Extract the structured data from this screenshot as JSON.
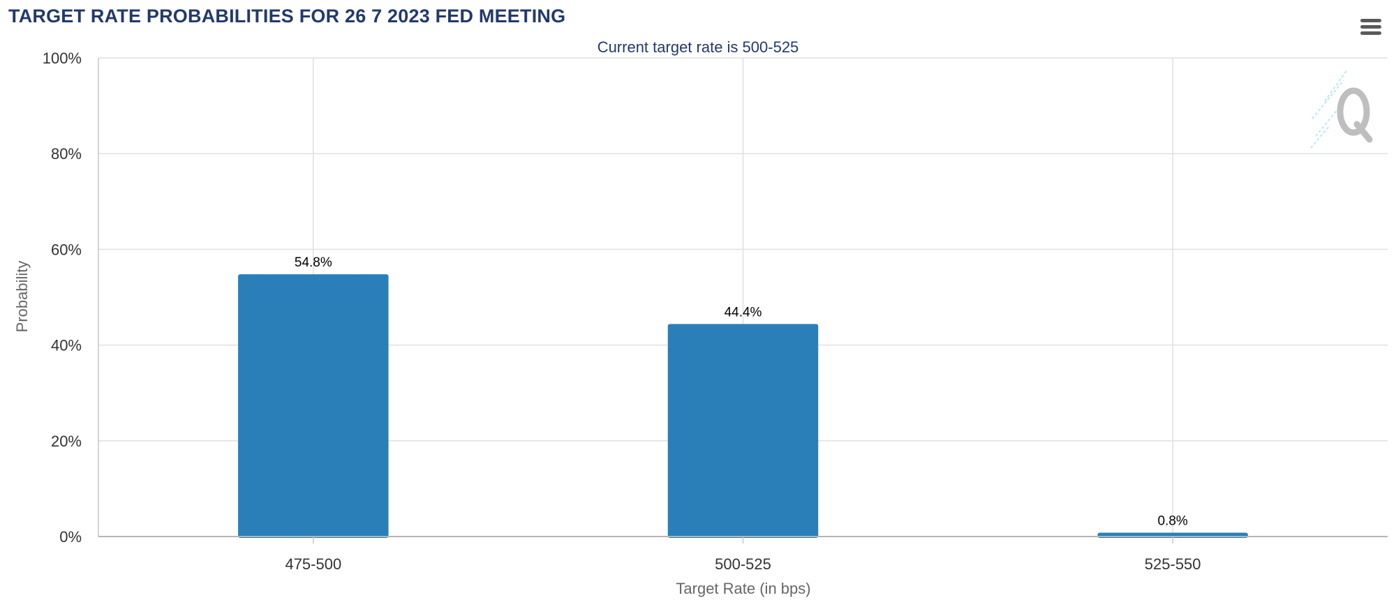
{
  "header": {
    "title": "TARGET RATE PROBABILITIES FOR 26 7 2023 FED MEETING",
    "menu_icon": "hamburger-menu-icon",
    "watermark_icon": "quikstrike-q-logo-icon"
  },
  "chart_data": {
    "type": "bar",
    "title": "TARGET RATE PROBABILITIES FOR 26 7 2023 FED MEETING",
    "subtitle": "Current target rate is 500-525",
    "xlabel": "Target Rate (in bps)",
    "ylabel": "Probability",
    "categories": [
      "475-500",
      "500-525",
      "525-550"
    ],
    "values": [
      54.8,
      44.4,
      0.8
    ],
    "data_labels": [
      "54.8%",
      "44.4%",
      "0.8%"
    ],
    "ylim": [
      0,
      100
    ],
    "yticks": [
      0,
      20,
      40,
      60,
      80,
      100
    ],
    "ytick_labels": [
      "0%",
      "20%",
      "40%",
      "60%",
      "80%",
      "100%"
    ],
    "grid": true,
    "legend": "none",
    "bar_color": "#2a7fb8",
    "grid_color": "#e0e0e0",
    "title_color": "#22396c"
  }
}
